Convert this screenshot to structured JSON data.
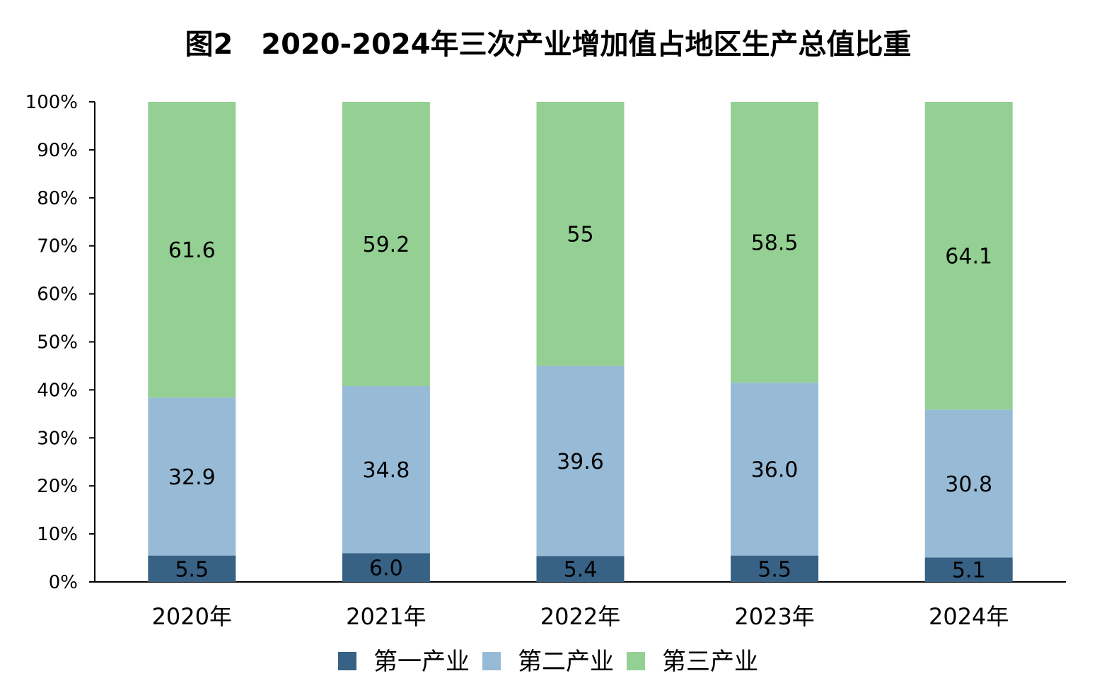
{
  "chart_data": {
    "type": "bar",
    "stacked": true,
    "title": "图2　2020-2024年三次产业增加值占地区生产总值比重",
    "categories": [
      "2020年",
      "2021年",
      "2022年",
      "2023年",
      "2024年"
    ],
    "series": [
      {
        "name": "第一产业",
        "color": "#376185",
        "values": [
          5.5,
          6.0,
          5.4,
          5.5,
          5.1
        ],
        "labels": [
          "5.5",
          "6.0",
          "5.4",
          "5.5",
          "5.1"
        ]
      },
      {
        "name": "第二产业",
        "color": "#97BBD6",
        "values": [
          32.9,
          34.8,
          39.6,
          36.0,
          30.8
        ],
        "labels": [
          "32.9",
          "34.8",
          "39.6",
          "36.0",
          "30.8"
        ]
      },
      {
        "name": "第三产业",
        "color": "#94D093",
        "values": [
          61.6,
          59.2,
          55,
          58.5,
          64.1
        ],
        "labels": [
          "61.6",
          "59.2",
          "55",
          "58.5",
          "64.1"
        ]
      }
    ],
    "yticks": [
      "0%",
      "10%",
      "20%",
      "30%",
      "40%",
      "50%",
      "60%",
      "70%",
      "80%",
      "90%",
      "100%"
    ],
    "ylim": [
      0,
      100
    ],
    "grid": false,
    "legend": "bottom"
  }
}
